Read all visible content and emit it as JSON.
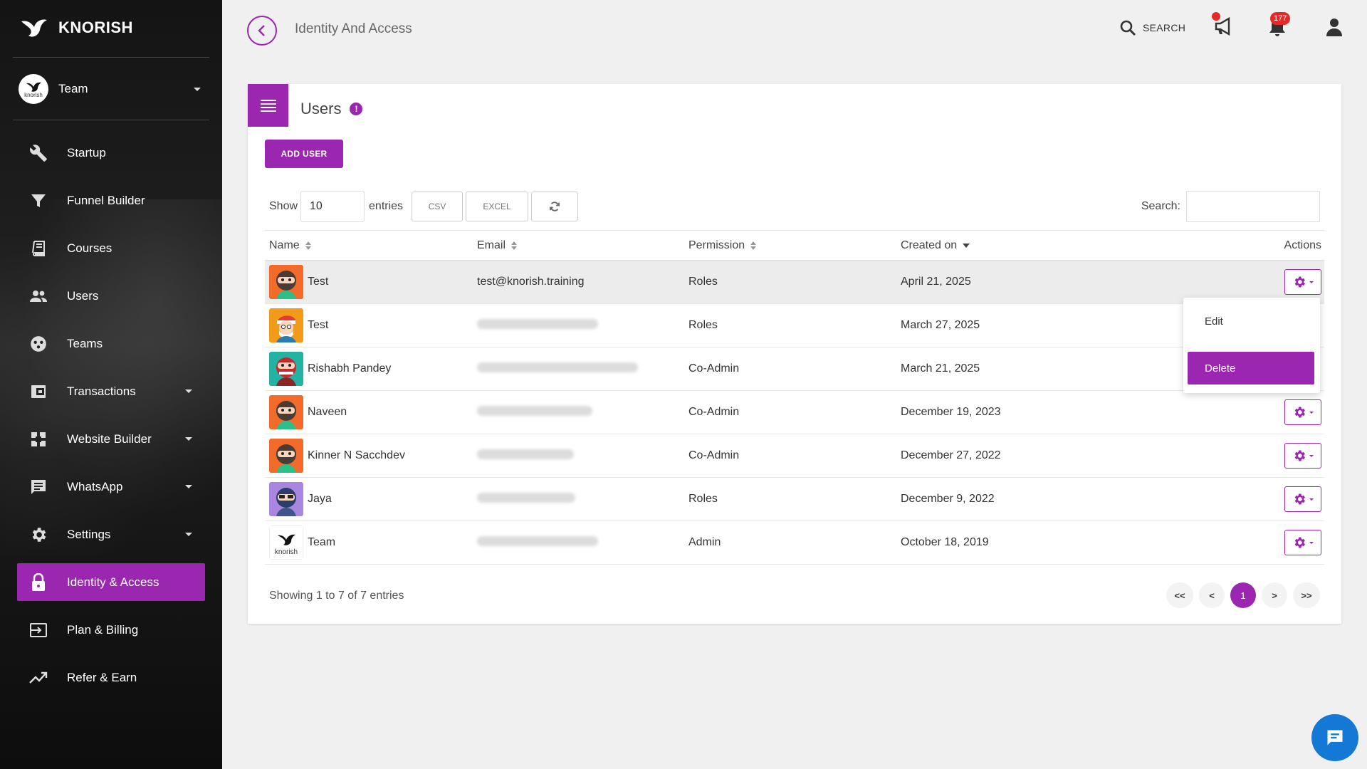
{
  "app": {
    "name": "KNORISH"
  },
  "sidebar": {
    "team_label": "Team",
    "team_avatar_text": "knorish",
    "items": [
      {
        "label": "Startup",
        "icon": "wrench-icon",
        "dropdown": false,
        "active": false
      },
      {
        "label": "Funnel Builder",
        "icon": "funnel-icon",
        "dropdown": false,
        "active": false
      },
      {
        "label": "Courses",
        "icon": "book-icon",
        "dropdown": false,
        "active": false
      },
      {
        "label": "Users",
        "icon": "users-icon",
        "dropdown": false,
        "active": false
      },
      {
        "label": "Teams",
        "icon": "teams-icon",
        "dropdown": false,
        "active": false
      },
      {
        "label": "Transactions",
        "icon": "transactions-icon",
        "dropdown": true,
        "active": false
      },
      {
        "label": "Website Builder",
        "icon": "website-icon",
        "dropdown": true,
        "active": false
      },
      {
        "label": "WhatsApp",
        "icon": "chat-icon",
        "dropdown": true,
        "active": false
      },
      {
        "label": "Settings",
        "icon": "gear-icon",
        "dropdown": true,
        "active": false
      },
      {
        "label": "Identity & Access",
        "icon": "lock-icon",
        "dropdown": false,
        "active": true
      },
      {
        "label": "Plan & Billing",
        "icon": "billing-icon",
        "dropdown": false,
        "active": false
      },
      {
        "label": "Refer & Earn",
        "icon": "trend-icon",
        "dropdown": false,
        "active": false
      }
    ]
  },
  "topbar": {
    "page_title": "Identity And Access",
    "search_label": "SEARCH",
    "notifications_count": "177"
  },
  "card": {
    "title": "Users",
    "info_badge": "!",
    "add_user_label": "ADD USER",
    "show_label": "Show",
    "entries_value": "10",
    "entries_label": "entries",
    "csv_label": "CSV",
    "excel_label": "EXCEL",
    "search_label": "Search:",
    "columns": {
      "name": "Name",
      "email": "Email",
      "permission": "Permission",
      "created": "Created on",
      "actions": "Actions"
    },
    "rows": [
      {
        "name": "Test",
        "email": "test@knorish.training",
        "email_hidden": false,
        "permission": "Roles",
        "created": "April 21, 2025",
        "avatar": "ninja-orange"
      },
      {
        "name": "Test",
        "email": "",
        "email_hidden": true,
        "permission": "Roles",
        "created": "March 27, 2025",
        "avatar": "santa-orange"
      },
      {
        "name": "Rishabh Pandey",
        "email": "",
        "email_hidden": true,
        "permission": "Co-Admin",
        "created": "March 21, 2025",
        "avatar": "ninja-teal"
      },
      {
        "name": "Naveen",
        "email": "",
        "email_hidden": true,
        "permission": "Co-Admin",
        "created": "December 19, 2023",
        "avatar": "ninja-orange"
      },
      {
        "name": "Kinner N Sacchdev",
        "email": "",
        "email_hidden": true,
        "permission": "Co-Admin",
        "created": "December 27, 2022",
        "avatar": "ninja-orange"
      },
      {
        "name": "Jaya",
        "email": "",
        "email_hidden": true,
        "permission": "Roles",
        "created": "December 9, 2022",
        "avatar": "ninja-purple"
      },
      {
        "name": "Team",
        "email": "",
        "email_hidden": true,
        "permission": "Admin",
        "created": "October 18, 2019",
        "avatar": "knorish-logo"
      }
    ],
    "dropdown": {
      "edit_label": "Edit",
      "delete_label": "Delete"
    },
    "footer_info": "Showing 1 to 7 of 7 entries",
    "pager": {
      "first": "<<",
      "prev": "<",
      "current": "1",
      "next": ">",
      "last": ">>"
    }
  },
  "colors": {
    "accent": "#9b27b0",
    "badge": "#e52828",
    "chat": "#1479d6"
  }
}
